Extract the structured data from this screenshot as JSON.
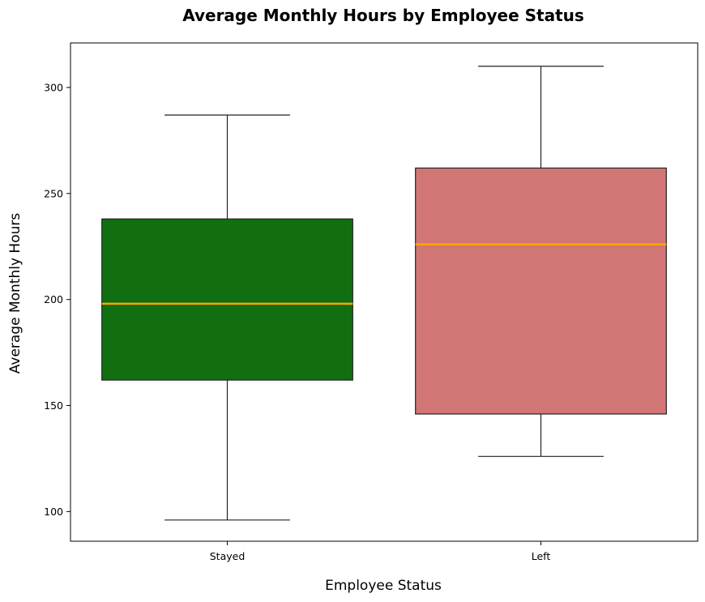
{
  "chart_data": {
    "type": "box",
    "title": "Average Monthly Hours by Employee Status",
    "xlabel": "Employee Status",
    "ylabel": "Average Monthly Hours",
    "ylim": [
      86,
      321
    ],
    "yticks": [
      "100",
      "150",
      "200",
      "250",
      "300"
    ],
    "grid": false,
    "categories": [
      "Stayed",
      "Left"
    ],
    "series": [
      {
        "category": "Stayed",
        "color": "#116f11",
        "whisker_low": 96,
        "q1": 162,
        "median": 198,
        "q3": 238,
        "whisker_high": 287
      },
      {
        "category": "Left",
        "color": "#d27675",
        "whisker_low": 126,
        "q1": 146,
        "median": 226,
        "q3": 262,
        "whisker_high": 310
      }
    ],
    "median_color": "#ffa500"
  }
}
